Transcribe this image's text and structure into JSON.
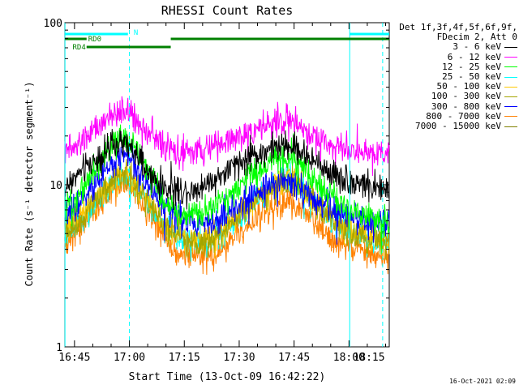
{
  "chart_data": {
    "type": "line",
    "title": "RHESSI Count Rates",
    "xlabel": "Start Time (13-Oct-09 16:42:22)",
    "ylabel": "Count Rate (s⁻¹ detector segment⁻¹)",
    "y_scale": "log",
    "ylim": [
      1,
      100
    ],
    "xlim_minutes_after_16_00": [
      42.37,
      131
    ],
    "x_ticks": [
      {
        "label": "16:45",
        "minute": 45
      },
      {
        "label": "17:00",
        "minute": 60
      },
      {
        "label": "17:15",
        "minute": 75
      },
      {
        "label": "17:30",
        "minute": 90
      },
      {
        "label": "17:45",
        "minute": 105
      },
      {
        "label": "18:00",
        "minute": 120
      },
      {
        "label": "18:15",
        "minute": 135
      }
    ],
    "y_ticks": [
      {
        "label": "1",
        "value": 1
      },
      {
        "label": "10",
        "value": 10
      },
      {
        "label": "100",
        "value": 100
      }
    ],
    "legend_header": [
      "Det 1f,3f,4f,5f,6f,9f,",
      "FDecim 2, Att 0"
    ],
    "legend_position": "right",
    "series": [
      {
        "name": "3 - 6 keV",
        "color": "#000000",
        "x_minutes": [
          42.4,
          45,
          50,
          55,
          58,
          60,
          63,
          66,
          70,
          75,
          80,
          85,
          90,
          95,
          100,
          103,
          105,
          107,
          110,
          115,
          120,
          125,
          128,
          131
        ],
        "values": [
          9.5,
          11,
          14,
          17,
          18,
          17,
          14,
          11,
          9.5,
          9.2,
          9.8,
          11.5,
          13.5,
          15.5,
          17,
          17.5,
          17,
          16,
          14,
          12,
          10.5,
          10,
          9.5,
          9.2
        ]
      },
      {
        "name": "6 - 12 keV",
        "color": "#ff00ff",
        "x_minutes": [
          42.4,
          45,
          50,
          55,
          58,
          60,
          63,
          66,
          70,
          75,
          80,
          85,
          90,
          95,
          100,
          103,
          105,
          107,
          110,
          115,
          120,
          125,
          128,
          131
        ],
        "values": [
          16,
          17,
          21,
          26,
          29,
          28,
          24,
          20,
          17,
          15.5,
          16,
          18,
          20,
          22,
          24,
          25,
          24,
          22.5,
          20,
          18,
          16.5,
          16,
          15.5,
          15.5
        ]
      },
      {
        "name": "12 - 25 keV",
        "color": "#00ff00",
        "x_minutes": [
          42.4,
          45,
          50,
          55,
          58,
          60,
          63,
          66,
          70,
          75,
          80,
          85,
          90,
          95,
          100,
          103,
          105,
          107,
          110,
          115,
          120,
          125,
          128,
          131
        ],
        "values": [
          7,
          8,
          12,
          17,
          20,
          19,
          15,
          11,
          7.5,
          6.5,
          6.5,
          8,
          10,
          12,
          14,
          15,
          14.5,
          13,
          11,
          8.5,
          7,
          6.3,
          6,
          6
        ]
      },
      {
        "name": "25 - 50 keV",
        "color": "#00ffff",
        "x_minutes": [
          42.4,
          45,
          50,
          55,
          58,
          60,
          63,
          66,
          70,
          75,
          80,
          85,
          90,
          95,
          100,
          103,
          105,
          107,
          110,
          115,
          120,
          125,
          128,
          131
        ],
        "values": [
          5,
          5.5,
          7.5,
          10,
          11.5,
          11,
          9,
          7,
          5.3,
          4.5,
          4.4,
          5,
          6.3,
          8,
          10,
          11,
          11,
          10,
          8.3,
          6.3,
          5.2,
          4.6,
          4.4,
          4.4
        ]
      },
      {
        "name": "50 - 100 keV",
        "color": "#ffc800",
        "x_minutes": [
          42.4,
          45,
          50,
          55,
          58,
          60,
          63,
          66,
          70,
          75,
          80,
          85,
          90,
          95,
          100,
          103,
          105,
          107,
          110,
          115,
          120,
          125,
          128,
          131
        ],
        "values": [
          5.2,
          5.8,
          8,
          10.5,
          12,
          11.5,
          9.5,
          7.3,
          5.5,
          4.7,
          4.6,
          5.2,
          6.5,
          8.2,
          10,
          11,
          10.8,
          9.8,
          8.2,
          6.3,
          5.3,
          4.8,
          4.6,
          4.6
        ]
      },
      {
        "name": "100 - 300 keV",
        "color": "#a5a500",
        "x_minutes": [
          42.4,
          45,
          50,
          55,
          58,
          60,
          63,
          66,
          70,
          75,
          80,
          85,
          90,
          95,
          100,
          103,
          105,
          107,
          110,
          115,
          120,
          125,
          128,
          131
        ],
        "values": [
          5,
          5.6,
          7.7,
          10.2,
          11.7,
          11.2,
          9.2,
          7.1,
          5.3,
          4.5,
          4.4,
          5,
          6.3,
          8,
          9.8,
          10.7,
          10.5,
          9.6,
          8,
          6.1,
          5.1,
          4.6,
          4.4,
          4.4
        ]
      },
      {
        "name": "300 - 800 keV",
        "color": "#0000ff",
        "x_minutes": [
          42.4,
          45,
          50,
          55,
          58,
          60,
          63,
          66,
          70,
          75,
          80,
          85,
          90,
          95,
          100,
          103,
          105,
          107,
          110,
          115,
          120,
          125,
          128,
          131
        ],
        "values": [
          6.2,
          7,
          9.5,
          13,
          15,
          14.5,
          12,
          9.3,
          7,
          6,
          5.8,
          6.3,
          7.5,
          8.7,
          9.7,
          10.2,
          10,
          9.4,
          8.3,
          7.1,
          6.3,
          5.9,
          5.7,
          5.7
        ]
      },
      {
        "name": "800 - 7000 keV",
        "color": "#ff8000",
        "x_minutes": [
          42.4,
          45,
          50,
          55,
          58,
          60,
          63,
          66,
          70,
          75,
          80,
          85,
          90,
          95,
          100,
          103,
          105,
          107,
          110,
          115,
          120,
          125,
          128,
          131
        ],
        "values": [
          4.2,
          4.8,
          6.6,
          9,
          10.5,
          10,
          8.2,
          6.2,
          4.5,
          3.7,
          3.5,
          4,
          5,
          6.2,
          7.2,
          7.6,
          7.4,
          6.8,
          5.9,
          4.8,
          4.1,
          3.8,
          3.6,
          3.6
        ]
      },
      {
        "name": "7000 - 15000 keV",
        "color": "#808000",
        "x_minutes": [],
        "values": []
      }
    ],
    "annotations": {
      "cyan_dashed_vlines_minutes": [
        60,
        129.2
      ],
      "cyan_solid_vlines_minutes": [
        42.4,
        120.2
      ],
      "flag_bars": [
        {
          "label": "",
          "color": "#00ffff",
          "y_level": 0,
          "start_minute": 42.4,
          "end_minute": 59.6
        },
        {
          "label": "N",
          "color": "#00ffff",
          "y_level": -1,
          "start_minute": 60.3,
          "end_minute": 60.3
        },
        {
          "label": "",
          "color": "#00ffff",
          "y_level": 0,
          "start_minute": 120.2,
          "end_minute": 131
        },
        {
          "label": "RD0",
          "color": "#008000",
          "y_level": 1,
          "start_minute": 42.4,
          "end_minute": 48.3
        },
        {
          "label": "",
          "color": "#008000",
          "y_level": 1,
          "start_minute": 71.3,
          "end_minute": 131
        },
        {
          "label": "RD4",
          "color": "#008000",
          "y_level": 2,
          "start_minute": 48.3,
          "end_minute": 71.3
        }
      ]
    }
  },
  "footer": {
    "timestamp": "16-Oct-2021 02:09"
  }
}
